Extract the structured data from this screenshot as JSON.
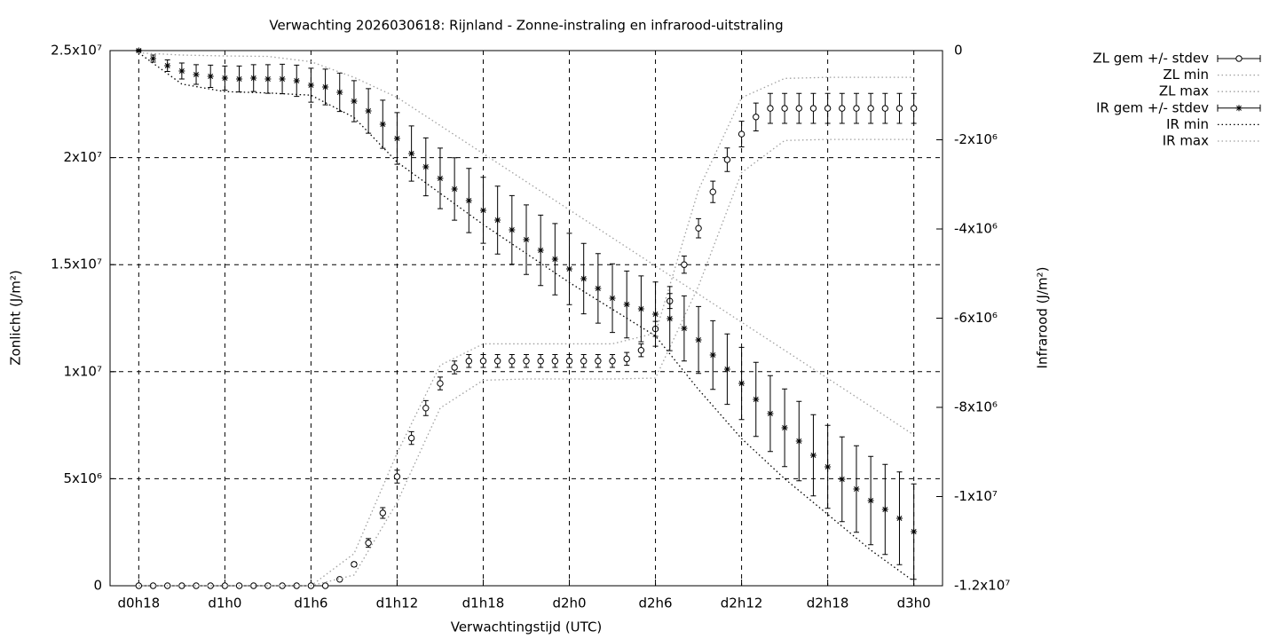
{
  "chart_data": {
    "type": "errorbar",
    "title": "Verwachting 2026030618: Rijnland - Zonne-instraling en infrarood-uitstraling",
    "xlabel": "Verwachtingstijd (UTC)",
    "ylabel": "Zonlicht (J/m²)",
    "y2label": "Infrarood (J/m²)",
    "grid": true,
    "legend": "top-right-outside",
    "xlim": [
      16,
      74
    ],
    "xticks": [
      {
        "value": 18,
        "label": "d0h18"
      },
      {
        "value": 24,
        "label": "d1h0"
      },
      {
        "value": 30,
        "label": "d1h6"
      },
      {
        "value": 36,
        "label": "d1h12"
      },
      {
        "value": 42,
        "label": "d1h18"
      },
      {
        "value": 48,
        "label": "d2h0"
      },
      {
        "value": 54,
        "label": "d2h6"
      },
      {
        "value": 60,
        "label": "d2h12"
      },
      {
        "value": 66,
        "label": "d2h18"
      },
      {
        "value": 72,
        "label": "d3h0"
      }
    ],
    "ylim": [
      0,
      25000000
    ],
    "yticks": [
      0,
      {
        "value": 5000000,
        "label": "5x10⁶"
      },
      {
        "value": 10000000,
        "label": "1x10⁷"
      },
      {
        "value": 15000000,
        "label": "1.5x10⁷"
      },
      {
        "value": 20000000,
        "label": "2x10⁷"
      },
      {
        "value": 25000000,
        "label": "2.5x10⁷"
      }
    ],
    "y2lim": [
      -12000000,
      0
    ],
    "y2ticks": [
      0,
      {
        "value": -2000000,
        "label": "-2x10⁶"
      },
      {
        "value": -4000000,
        "label": "-4x10⁶"
      },
      {
        "value": -6000000,
        "label": "-6x10⁶"
      },
      {
        "value": -8000000,
        "label": "-8x10⁶"
      },
      {
        "value": -10000000,
        "label": "-1x10⁷"
      },
      {
        "value": -12000000,
        "label": "-1.2x10⁷"
      }
    ],
    "x": [
      18,
      19,
      20,
      21,
      22,
      23,
      24,
      25,
      26,
      27,
      28,
      29,
      30,
      31,
      32,
      33,
      34,
      35,
      36,
      37,
      38,
      39,
      40,
      41,
      42,
      43,
      44,
      45,
      46,
      47,
      48,
      49,
      50,
      51,
      52,
      53,
      54,
      55,
      56,
      57,
      58,
      59,
      60,
      61,
      62,
      63,
      64,
      65,
      66,
      67,
      68,
      69,
      70,
      71,
      72
    ],
    "series": [
      {
        "name": "ZL gem +/- stdev",
        "color": "#000000",
        "marker": "circle",
        "axis": "y",
        "values": [
          0,
          0,
          0,
          0,
          0,
          0,
          0,
          0,
          0,
          0,
          0,
          0,
          0,
          0,
          300000,
          1000000,
          2000000,
          3400000,
          5100000,
          6900000,
          8300000,
          9450000,
          10200000,
          10500000,
          10500000,
          10500000,
          10500000,
          10500000,
          10500000,
          10500000,
          10500000,
          10500000,
          10500000,
          10500000,
          10600000,
          11000000,
          12000000,
          13300000,
          15000000,
          16700000,
          18400000,
          19900000,
          21100000,
          21900000,
          22300000,
          22300000,
          22300000,
          22300000,
          22300000,
          22300000,
          22300000,
          22300000,
          22300000,
          22300000,
          22300000
        ],
        "errors": [
          0,
          0,
          0,
          0,
          0,
          0,
          0,
          0,
          0,
          0,
          0,
          0,
          0,
          0,
          50000,
          100000,
          200000,
          250000,
          300000,
          300000,
          350000,
          300000,
          300000,
          300000,
          300000,
          300000,
          300000,
          300000,
          300000,
          300000,
          300000,
          300000,
          300000,
          300000,
          300000,
          300000,
          350000,
          350000,
          400000,
          450000,
          500000,
          550000,
          600000,
          650000,
          700000,
          700000,
          700000,
          700000,
          700000,
          700000,
          700000,
          700000,
          700000,
          700000,
          700000
        ]
      },
      {
        "name": "ZL min",
        "color": "#a0a0a0",
        "dash": "dotted",
        "axis": "y",
        "x": [
          18,
          21,
          24,
          27,
          30,
          33,
          36,
          39,
          42,
          45,
          48,
          51,
          54,
          57,
          60,
          63,
          66,
          69,
          72
        ],
        "values": [
          0,
          0,
          0,
          0,
          0,
          500000,
          3900000,
          8300000,
          9600000,
          9660000,
          9660000,
          9660000,
          9700000,
          14000000,
          19300000,
          20800000,
          20850000,
          20850000,
          20850000
        ]
      },
      {
        "name": "ZL max",
        "color": "#a0a0a0",
        "dash": "dotted",
        "axis": "y",
        "x": [
          18,
          21,
          24,
          27,
          30,
          33,
          36,
          39,
          42,
          45,
          48,
          51,
          54,
          57,
          60,
          63,
          66,
          69,
          72
        ],
        "values": [
          0,
          0,
          0,
          0,
          0,
          1500000,
          6200000,
          10300000,
          11300000,
          11300000,
          11300000,
          11300000,
          11800000,
          18500000,
          22800000,
          23700000,
          23750000,
          23750000,
          23750000
        ]
      },
      {
        "name": "IR gem +/- stdev",
        "color": "#000000",
        "marker": "star",
        "axis": "y2",
        "values": [
          0,
          -179000,
          -338000,
          -458000,
          -537000,
          -577000,
          -617000,
          -637000,
          -617000,
          -637000,
          -637000,
          -677000,
          -776000,
          -816000,
          -935000,
          -1134000,
          -1353000,
          -1652000,
          -1970000,
          -2308000,
          -2607000,
          -2866000,
          -3104000,
          -3363000,
          -3582000,
          -3801000,
          -4020000,
          -4239000,
          -4478000,
          -4677000,
          -4896000,
          -5114000,
          -5333000,
          -5552000,
          -5692000,
          -5791000,
          -5910000,
          -6010000,
          -6229000,
          -6488000,
          -6826000,
          -7144000,
          -7463000,
          -7821000,
          -8139000,
          -8458000,
          -8756000,
          -9075000,
          -9333000,
          -9612000,
          -9831000,
          -10090000,
          -10289000,
          -10488000,
          -10786000
        ],
        "errors": [
          20000,
          80000,
          130000,
          180000,
          220000,
          250000,
          270000,
          290000,
          300000,
          320000,
          330000,
          350000,
          380000,
          400000,
          430000,
          460000,
          500000,
          540000,
          580000,
          620000,
          650000,
          680000,
          700000,
          720000,
          740000,
          760000,
          770000,
          780000,
          790000,
          800000,
          800000,
          790000,
          780000,
          770000,
          750000,
          740000,
          720000,
          720000,
          730000,
          750000,
          770000,
          790000,
          810000,
          830000,
          850000,
          870000,
          890000,
          910000,
          930000,
          950000,
          970000,
          990000,
          1010000,
          1040000,
          1070000
        ]
      },
      {
        "name": "IR min",
        "color": "#000000",
        "dash": "dotted",
        "axis": "y2",
        "x": [
          18,
          21,
          24,
          27,
          30,
          33,
          36,
          39,
          42,
          45,
          48,
          51,
          54,
          57,
          60,
          63,
          66,
          69,
          72
        ],
        "values": [
          -50000,
          -750000,
          -920000,
          -950000,
          -1000000,
          -1500000,
          -2500000,
          -3200000,
          -3900000,
          -4550000,
          -5200000,
          -5800000,
          -6400000,
          -7600000,
          -8700000,
          -9600000,
          -10400000,
          -11200000,
          -11900000
        ]
      },
      {
        "name": "IR max",
        "color": "#a0a0a0",
        "dash": "dotted",
        "axis": "y2",
        "x": [
          18,
          21,
          24,
          27,
          30,
          33,
          36,
          39,
          42,
          45,
          48,
          51,
          54,
          57,
          60,
          63,
          66,
          69,
          72
        ],
        "values": [
          -50000,
          -100000,
          -120000,
          -130000,
          -250000,
          -600000,
          -1050000,
          -1680000,
          -2310000,
          -2940000,
          -3570000,
          -4200000,
          -4830000,
          -5460000,
          -6090000,
          -6720000,
          -7350000,
          -7980000,
          -8620000
        ]
      }
    ]
  }
}
